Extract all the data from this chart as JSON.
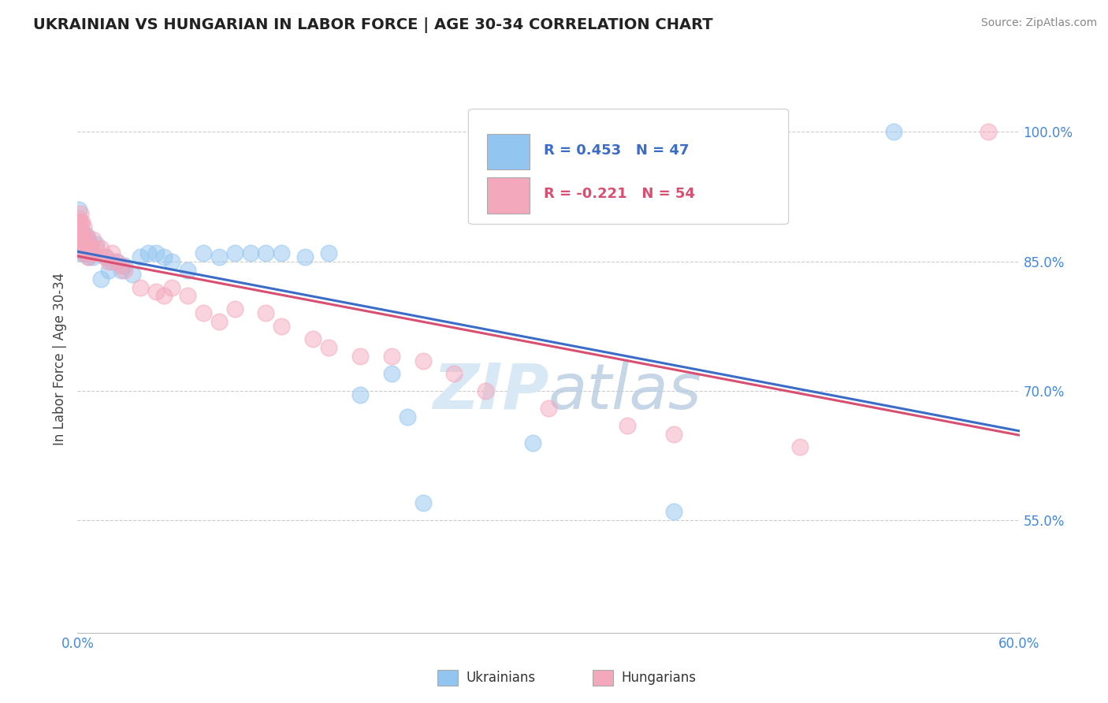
{
  "title": "UKRAINIAN VS HUNGARIAN IN LABOR FORCE | AGE 30-34 CORRELATION CHART",
  "source": "Source: ZipAtlas.com",
  "ylabel": "In Labor Force | Age 30-34",
  "xlim": [
    0.0,
    0.6
  ],
  "ylim": [
    0.42,
    1.055
  ],
  "yticks": [
    0.55,
    0.7,
    0.85,
    1.0
  ],
  "ytick_labels": [
    "55.0%",
    "70.0%",
    "85.0%",
    "100.0%"
  ],
  "xticks": [
    0.0,
    0.1,
    0.2,
    0.3,
    0.4,
    0.5,
    0.6
  ],
  "xtick_labels": [
    "0.0%",
    "",
    "",
    "",
    "",
    "",
    "60.0%"
  ],
  "ukrainian_color": "#92C5F0",
  "hungarian_color": "#F4A8BC",
  "trendline_ukrainian_color": "#3B6CC7",
  "trendline_hungarian_color": "#D94F72",
  "R_ukrainian": 0.453,
  "N_ukrainian": 47,
  "R_hungarian": -0.221,
  "N_hungarian": 54,
  "background_color": "#FFFFFF",
  "watermark_color": "#D8E8F5",
  "ukrainians": [
    [
      0.001,
      0.88
    ],
    [
      0.001,
      0.91
    ],
    [
      0.002,
      0.87
    ],
    [
      0.002,
      0.86
    ],
    [
      0.003,
      0.885
    ],
    [
      0.003,
      0.87
    ],
    [
      0.003,
      0.865
    ],
    [
      0.004,
      0.875
    ],
    [
      0.004,
      0.86
    ],
    [
      0.005,
      0.86
    ],
    [
      0.005,
      0.87
    ],
    [
      0.006,
      0.88
    ],
    [
      0.006,
      0.86
    ],
    [
      0.007,
      0.875
    ],
    [
      0.007,
      0.855
    ],
    [
      0.008,
      0.87
    ],
    [
      0.01,
      0.855
    ],
    [
      0.012,
      0.87
    ],
    [
      0.015,
      0.83
    ],
    [
      0.018,
      0.855
    ],
    [
      0.02,
      0.84
    ],
    [
      0.022,
      0.85
    ],
    [
      0.025,
      0.85
    ],
    [
      0.028,
      0.84
    ],
    [
      0.03,
      0.845
    ],
    [
      0.035,
      0.835
    ],
    [
      0.04,
      0.855
    ],
    [
      0.045,
      0.86
    ],
    [
      0.05,
      0.86
    ],
    [
      0.055,
      0.855
    ],
    [
      0.06,
      0.85
    ],
    [
      0.07,
      0.84
    ],
    [
      0.08,
      0.86
    ],
    [
      0.09,
      0.855
    ],
    [
      0.1,
      0.86
    ],
    [
      0.11,
      0.86
    ],
    [
      0.12,
      0.86
    ],
    [
      0.13,
      0.86
    ],
    [
      0.145,
      0.855
    ],
    [
      0.16,
      0.86
    ],
    [
      0.18,
      0.695
    ],
    [
      0.2,
      0.72
    ],
    [
      0.21,
      0.67
    ],
    [
      0.22,
      0.57
    ],
    [
      0.29,
      0.64
    ],
    [
      0.38,
      0.56
    ],
    [
      0.52,
      1.0
    ]
  ],
  "hungarians": [
    [
      0.001,
      0.9
    ],
    [
      0.001,
      0.895
    ],
    [
      0.001,
      0.885
    ],
    [
      0.002,
      0.905
    ],
    [
      0.002,
      0.895
    ],
    [
      0.002,
      0.885
    ],
    [
      0.002,
      0.875
    ],
    [
      0.003,
      0.895
    ],
    [
      0.003,
      0.88
    ],
    [
      0.003,
      0.87
    ],
    [
      0.003,
      0.865
    ],
    [
      0.004,
      0.89
    ],
    [
      0.004,
      0.875
    ],
    [
      0.004,
      0.86
    ],
    [
      0.005,
      0.88
    ],
    [
      0.005,
      0.87
    ],
    [
      0.006,
      0.875
    ],
    [
      0.006,
      0.865
    ],
    [
      0.007,
      0.87
    ],
    [
      0.007,
      0.855
    ],
    [
      0.008,
      0.86
    ],
    [
      0.009,
      0.865
    ],
    [
      0.01,
      0.875
    ],
    [
      0.01,
      0.86
    ],
    [
      0.012,
      0.865
    ],
    [
      0.015,
      0.865
    ],
    [
      0.018,
      0.855
    ],
    [
      0.02,
      0.85
    ],
    [
      0.022,
      0.86
    ],
    [
      0.025,
      0.85
    ],
    [
      0.028,
      0.845
    ],
    [
      0.03,
      0.84
    ],
    [
      0.04,
      0.82
    ],
    [
      0.05,
      0.815
    ],
    [
      0.055,
      0.81
    ],
    [
      0.06,
      0.82
    ],
    [
      0.07,
      0.81
    ],
    [
      0.08,
      0.79
    ],
    [
      0.09,
      0.78
    ],
    [
      0.1,
      0.795
    ],
    [
      0.12,
      0.79
    ],
    [
      0.13,
      0.775
    ],
    [
      0.15,
      0.76
    ],
    [
      0.16,
      0.75
    ],
    [
      0.18,
      0.74
    ],
    [
      0.2,
      0.74
    ],
    [
      0.22,
      0.735
    ],
    [
      0.24,
      0.72
    ],
    [
      0.26,
      0.7
    ],
    [
      0.3,
      0.68
    ],
    [
      0.35,
      0.66
    ],
    [
      0.38,
      0.65
    ],
    [
      0.46,
      0.635
    ],
    [
      0.58,
      1.0
    ]
  ]
}
